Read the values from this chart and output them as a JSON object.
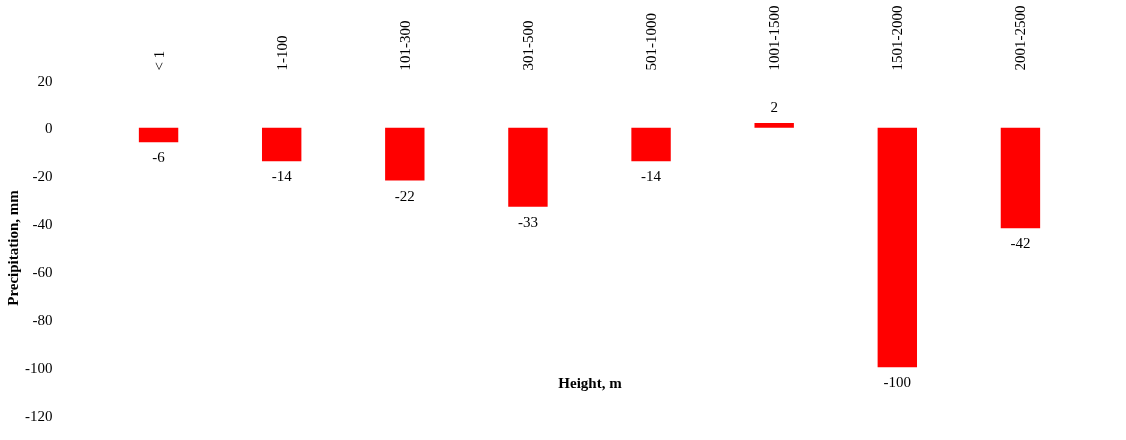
{
  "chart_data": {
    "type": "bar",
    "xlabel": "Height, m",
    "ylabel": "Precipitation, mm",
    "categories": [
      "< 1",
      "1-100",
      "101-300",
      "301-500",
      "501-1000",
      "1001-1500",
      "1501-2000",
      "2001-2500"
    ],
    "values": [
      -6,
      -14,
      -22,
      -33,
      -14,
      2,
      -100,
      -42
    ],
    "color": "#ff0000",
    "ylim": [
      -120,
      20
    ],
    "yticks": [
      -120,
      -100,
      -80,
      -60,
      -40,
      -20,
      0,
      20
    ],
    "grid": false,
    "data_labels": true
  }
}
